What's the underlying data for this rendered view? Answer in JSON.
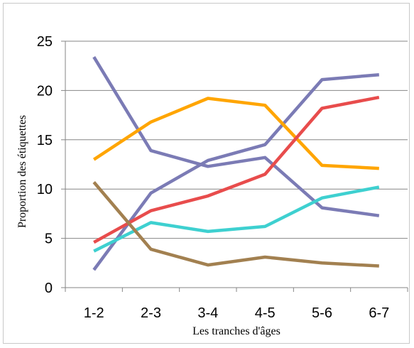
{
  "chart_data": {
    "type": "line",
    "categories": [
      "1-2",
      "2-3",
      "3-4",
      "4-5",
      "5-6",
      "6-7"
    ],
    "xlabel": "Les tranches d'âges",
    "ylabel": "Proportion des étiquettes",
    "ylim": [
      0,
      25
    ],
    "yticks": [
      0,
      5,
      10,
      15,
      20,
      25
    ],
    "grid": true,
    "series": [
      {
        "color": "#7B7BB5",
        "values": [
          23.4,
          13.9,
          12.3,
          13.2,
          8.1,
          7.3
        ]
      },
      {
        "color": "#7B7BB5",
        "values": [
          1.8,
          9.6,
          12.9,
          14.5,
          21.1,
          21.6
        ]
      },
      {
        "color": "#FFA500",
        "values": [
          13.0,
          16.8,
          19.2,
          18.5,
          12.4,
          12.1
        ]
      },
      {
        "color": "#E84C4C",
        "values": [
          4.6,
          7.8,
          9.3,
          11.5,
          18.2,
          19.3
        ]
      },
      {
        "color": "#3ED0D0",
        "values": [
          3.7,
          6.6,
          5.7,
          6.2,
          9.1,
          10.2
        ]
      },
      {
        "color": "#A28050",
        "values": [
          10.7,
          3.9,
          2.3,
          3.1,
          2.5,
          2.2
        ]
      }
    ]
  }
}
